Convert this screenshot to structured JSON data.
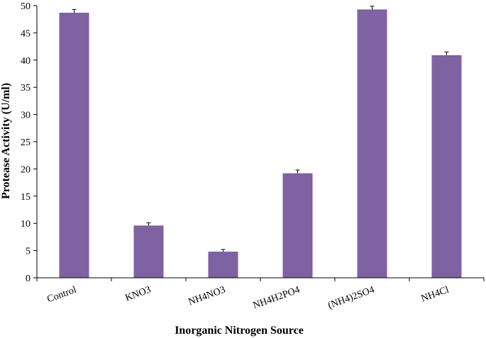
{
  "chart_data": {
    "type": "bar",
    "title": "",
    "xlabel": "Inorganic Nitrogen Source",
    "ylabel": "Protease Activity (U/ml)",
    "categories": [
      "Control",
      "KNO3",
      "NH4NO3",
      "NH4H2PO4",
      "(NH4)2SO4",
      "NH4Cl"
    ],
    "values": [
      48.7,
      9.6,
      4.8,
      19.2,
      49.3,
      40.9
    ],
    "error": [
      0.6,
      0.5,
      0.4,
      0.6,
      0.6,
      0.6
    ],
    "ylim": [
      0,
      50
    ],
    "yticks": [
      0,
      5,
      10,
      15,
      20,
      25,
      30,
      35,
      40,
      45,
      50
    ],
    "grid": false,
    "colors": {
      "bar": "#7f62a1",
      "axis": "#000000"
    }
  }
}
